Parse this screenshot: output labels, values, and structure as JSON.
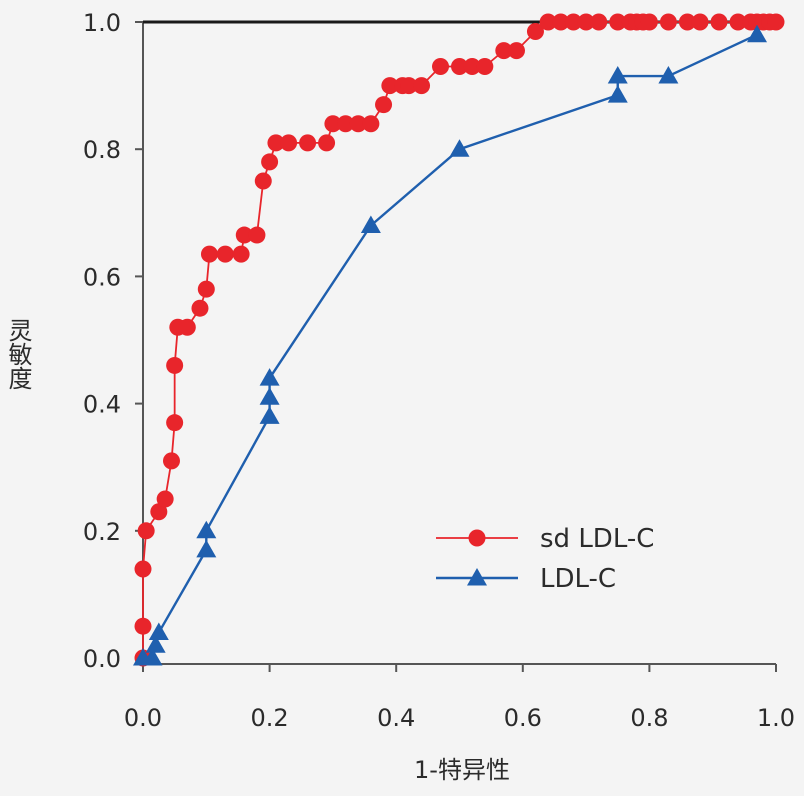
{
  "chart_data": {
    "type": "line",
    "xlabel": "1-特异性",
    "ylabel": "灵敏度",
    "xlim": [
      0,
      1
    ],
    "ylim": [
      0,
      1
    ],
    "xticks": [
      "0.0",
      "0.2",
      "0.4",
      "0.6",
      "0.8",
      "1.0"
    ],
    "yticks": [
      "0.0",
      "0.2",
      "0.4",
      "0.6",
      "0.8",
      "1.0"
    ],
    "reference_line": {
      "from": [
        0,
        1
      ],
      "to": [
        1,
        1
      ],
      "color": "#1a1a1a"
    },
    "legend_position": "lower-right",
    "series": [
      {
        "name": "sd LDL-C",
        "marker": "circle",
        "color": "#e8252b",
        "x": [
          0,
          0,
          0,
          0.005,
          0.025,
          0.035,
          0.045,
          0.05,
          0.05,
          0.055,
          0.07,
          0.09,
          0.1,
          0.105,
          0.13,
          0.155,
          0.16,
          0.18,
          0.19,
          0.2,
          0.21,
          0.23,
          0.26,
          0.29,
          0.3,
          0.32,
          0.34,
          0.36,
          0.38,
          0.39,
          0.41,
          0.42,
          0.44,
          0.47,
          0.5,
          0.52,
          0.54,
          0.57,
          0.59,
          0.62,
          0.64,
          0.66,
          0.68,
          0.7,
          0.72,
          0.75,
          0.77,
          0.78,
          0.79,
          0.8,
          0.83,
          0.86,
          0.88,
          0.91,
          0.94,
          0.96,
          0.97,
          0.98,
          0.99,
          1.0
        ],
        "y": [
          0,
          0.05,
          0.14,
          0.2,
          0.23,
          0.25,
          0.31,
          0.37,
          0.46,
          0.52,
          0.52,
          0.55,
          0.58,
          0.635,
          0.635,
          0.635,
          0.665,
          0.665,
          0.75,
          0.78,
          0.81,
          0.81,
          0.81,
          0.81,
          0.84,
          0.84,
          0.84,
          0.84,
          0.87,
          0.9,
          0.9,
          0.9,
          0.9,
          0.93,
          0.93,
          0.93,
          0.93,
          0.955,
          0.955,
          0.985,
          1,
          1,
          1,
          1,
          1,
          1,
          1,
          1,
          1,
          1,
          1,
          1,
          1,
          1,
          1,
          1,
          1,
          1,
          1,
          1
        ]
      },
      {
        "name": "LDL-C",
        "marker": "triangle",
        "color": "#1f5fae",
        "x": [
          0,
          0.015,
          0.02,
          0.025,
          0.1,
          0.1,
          0.2,
          0.2,
          0.2,
          0.36,
          0.5,
          0.75,
          0.75,
          0.83,
          0.97
        ],
        "y": [
          0,
          0,
          0.02,
          0.04,
          0.17,
          0.2,
          0.38,
          0.41,
          0.44,
          0.68,
          0.8,
          0.885,
          0.915,
          0.915,
          0.98
        ]
      }
    ]
  }
}
